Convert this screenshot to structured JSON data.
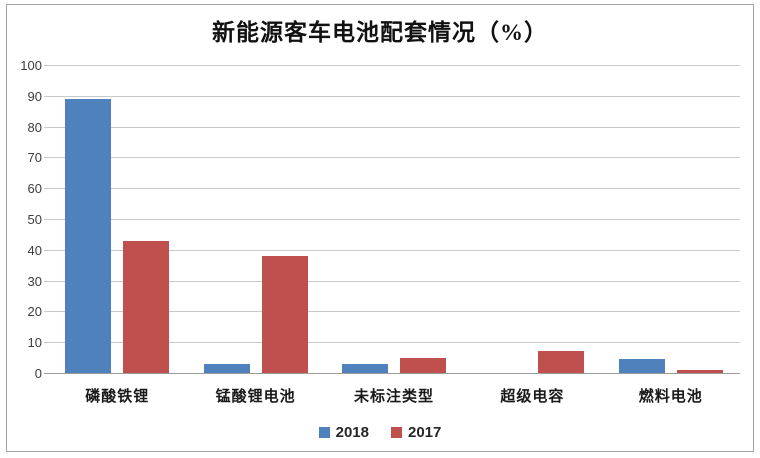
{
  "title": "新能源客车电池配套情况（%）",
  "colors": {
    "series_2018": "#4f81bd",
    "series_2017": "#c0504d",
    "gridline": "#c9c9c9",
    "axis_line": "#9b9b9b",
    "frame_border": "#a3a3a3",
    "background": "#ffffff"
  },
  "chart_data": {
    "type": "bar",
    "title": "新能源客车电池配套情况（%）",
    "categories": [
      "磷酸铁锂",
      "锰酸锂电池",
      "未标注类型",
      "超级电容",
      "燃料电池"
    ],
    "series": [
      {
        "name": "2018",
        "color": "#4f81bd",
        "values": [
          89,
          3,
          3,
          0,
          4.5
        ]
      },
      {
        "name": "2017",
        "color": "#c0504d",
        "values": [
          43,
          38,
          5,
          7,
          1
        ]
      }
    ],
    "xlabel": "",
    "ylabel": "",
    "ylim": [
      0,
      100
    ],
    "yticks": [
      0,
      10,
      20,
      30,
      40,
      50,
      60,
      70,
      80,
      90,
      100
    ],
    "grid": true,
    "legend_position": "bottom"
  },
  "legend": {
    "items": [
      {
        "label": "2018",
        "color": "#4f81bd"
      },
      {
        "label": "2017",
        "color": "#c0504d"
      }
    ]
  }
}
